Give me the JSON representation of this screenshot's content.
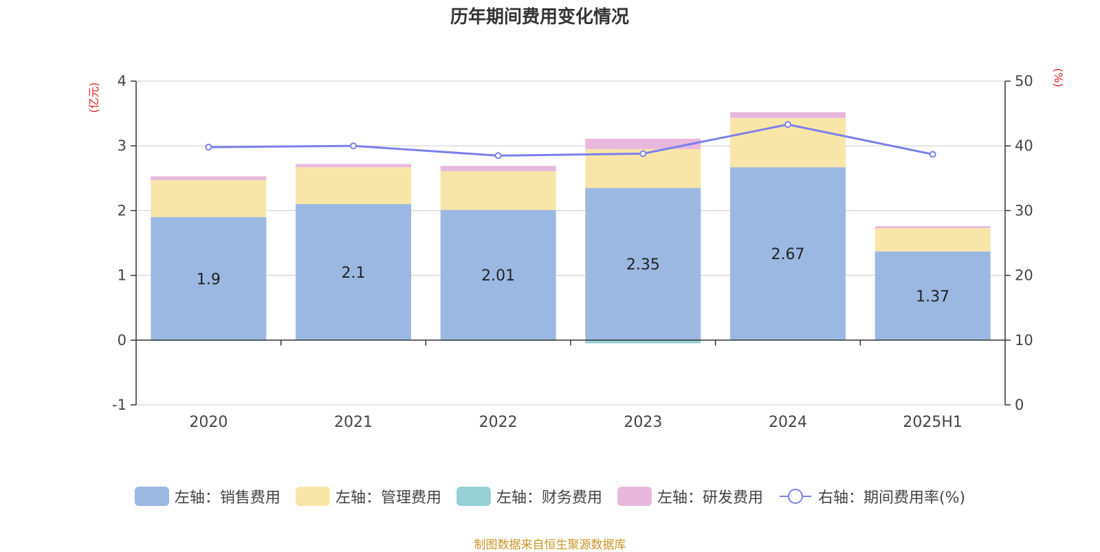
{
  "chart_data": {
    "type": "bar",
    "title": "历年期间费用变化情况",
    "categories": [
      "2020",
      "2021",
      "2022",
      "2023",
      "2024",
      "2025H1"
    ],
    "series": [
      {
        "name": "左轴：销售费用",
        "kind": "bar",
        "axis": "left",
        "color": "#9bb8e2",
        "values": [
          1.9,
          2.1,
          2.01,
          2.35,
          2.67,
          1.37
        ],
        "show_labels": true
      },
      {
        "name": "左轴：管理费用",
        "kind": "bar",
        "axis": "left",
        "color": "#f8e6a8",
        "values": [
          0.57,
          0.57,
          0.6,
          0.6,
          0.76,
          0.36
        ],
        "show_labels": false
      },
      {
        "name": "左轴：财务费用",
        "kind": "bar",
        "axis": "left",
        "color": "#96d2d5",
        "values": [
          -0.01,
          0.0,
          -0.01,
          -0.05,
          0.0,
          0.0
        ],
        "show_labels": false
      },
      {
        "name": "左轴：研发费用",
        "kind": "bar",
        "axis": "left",
        "color": "#e8b8dc",
        "values": [
          0.06,
          0.05,
          0.08,
          0.16,
          0.09,
          0.03
        ],
        "show_labels": false
      },
      {
        "name": "右轴：期间费用率(%)",
        "kind": "line",
        "axis": "right",
        "color": "#7b7fec",
        "values": [
          39.8,
          40.0,
          38.5,
          38.8,
          43.3,
          38.7
        ]
      }
    ],
    "y_left": {
      "label": "(亿元)",
      "min": -1,
      "max": 4,
      "ticks": [
        -1,
        0,
        1,
        2,
        3,
        4
      ]
    },
    "y_right": {
      "label": "(%)",
      "min": 0,
      "max": 50,
      "ticks": [
        0,
        10,
        20,
        30,
        40,
        50
      ]
    },
    "grid": true,
    "legend_position": "bottom"
  },
  "footer": "制图数据来自恒生聚源数据库"
}
